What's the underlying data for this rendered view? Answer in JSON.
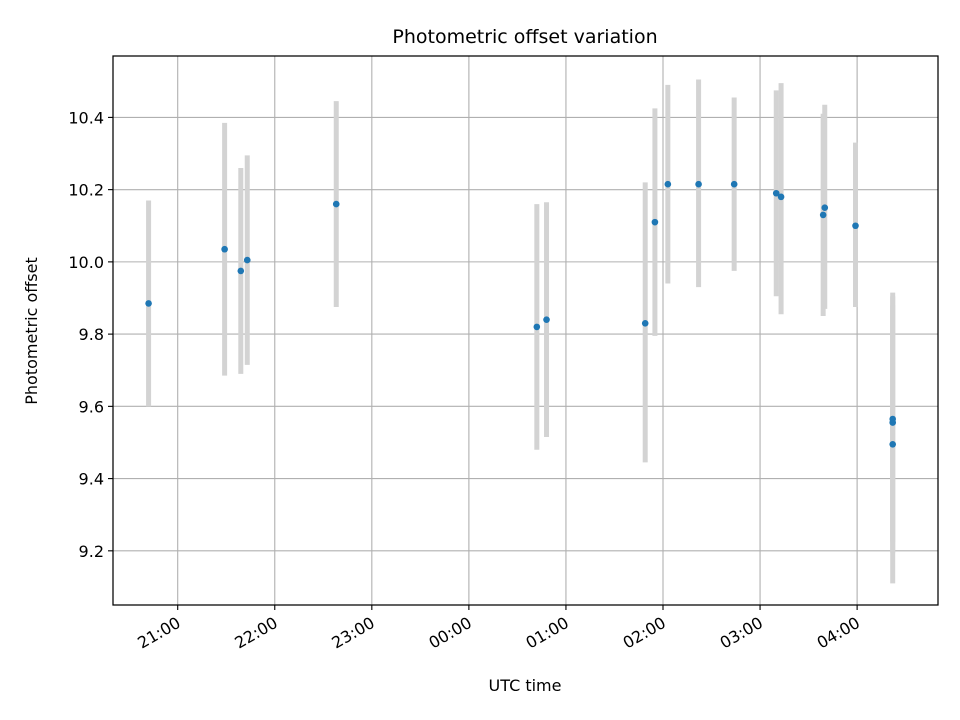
{
  "chart_data": {
    "type": "scatter",
    "title": "Photometric offset variation",
    "xlabel": "UTC time",
    "ylabel": "Photometric offset",
    "x_axis_kind": "time",
    "xlim": [
      "20:20",
      "04:50"
    ],
    "ylim": [
      9.05,
      10.57
    ],
    "grid": true,
    "marker_color": "#1f77b4",
    "errorbar_color": "#d3d3d3",
    "x_ticks": [
      "21:00",
      "22:00",
      "23:00",
      "00:00",
      "01:00",
      "02:00",
      "03:00",
      "04:00"
    ],
    "y_ticks": [
      "9.2",
      "9.4",
      "9.6",
      "9.8",
      "10.0",
      "10.2",
      "10.4"
    ],
    "points": [
      {
        "t": "20:42",
        "y": 9.885,
        "lo": 9.6,
        "hi": 10.17
      },
      {
        "t": "21:29",
        "y": 10.035,
        "lo": 9.685,
        "hi": 10.385
      },
      {
        "t": "21:39",
        "y": 9.975,
        "lo": 9.69,
        "hi": 10.26
      },
      {
        "t": "21:43",
        "y": 10.005,
        "lo": 9.715,
        "hi": 10.295
      },
      {
        "t": "22:38",
        "y": 10.16,
        "lo": 9.875,
        "hi": 10.445
      },
      {
        "t": "00:42",
        "y": 9.82,
        "lo": 9.48,
        "hi": 10.16
      },
      {
        "t": "00:48",
        "y": 9.84,
        "lo": 9.515,
        "hi": 10.165
      },
      {
        "t": "01:49",
        "y": 9.83,
        "lo": 9.445,
        "hi": 10.22
      },
      {
        "t": "01:55",
        "y": 10.11,
        "lo": 9.795,
        "hi": 10.425
      },
      {
        "t": "02:03",
        "y": 10.215,
        "lo": 9.94,
        "hi": 10.49
      },
      {
        "t": "02:22",
        "y": 10.215,
        "lo": 9.93,
        "hi": 10.505
      },
      {
        "t": "02:44",
        "y": 10.215,
        "lo": 9.975,
        "hi": 10.455
      },
      {
        "t": "03:10",
        "y": 10.19,
        "lo": 9.905,
        "hi": 10.475
      },
      {
        "t": "03:13",
        "y": 10.18,
        "lo": 9.855,
        "hi": 10.495
      },
      {
        "t": "03:39",
        "y": 10.13,
        "lo": 9.85,
        "hi": 10.41
      },
      {
        "t": "03:40",
        "y": 10.15,
        "lo": 9.87,
        "hi": 10.435
      },
      {
        "t": "03:59",
        "y": 10.1,
        "lo": 9.875,
        "hi": 10.33
      },
      {
        "t": "04:22",
        "y": 9.495,
        "lo": 9.11,
        "hi": 9.88
      },
      {
        "t": "04:22",
        "y": 9.555,
        "lo": 9.195,
        "hi": 9.915
      },
      {
        "t": "04:22",
        "y": 9.565,
        "lo": 9.225,
        "hi": 9.905
      }
    ]
  }
}
